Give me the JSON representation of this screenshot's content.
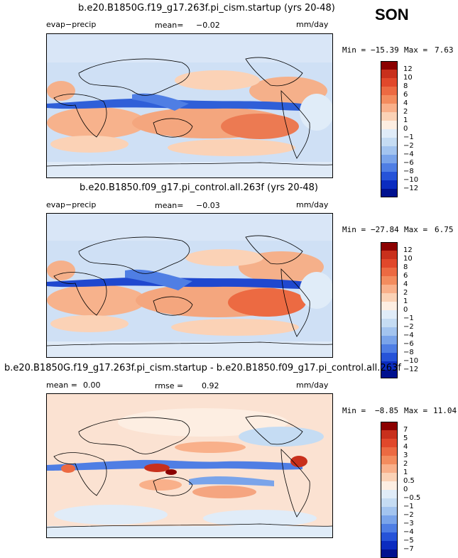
{
  "season": "SON",
  "panels": [
    {
      "title": "b.e20.B1850G.f19_g17.263f.pi_cism.startup (yrs 20-48)",
      "left_label": "evap−precip",
      "stat_label": "mean=",
      "stat_value": "−0.02",
      "units": "mm/day",
      "min_label": "Min =",
      "min_value": "−15.39",
      "max_label": "Max =",
      "max_value": "7.63",
      "colorbar": {
        "colors": [
          "#8b0000",
          "#c8301c",
          "#e1482b",
          "#ec6a42",
          "#f38c5e",
          "#f9b08a",
          "#fbd2b6",
          "#fdeee2",
          "#e0ecf8",
          "#c5dcf3",
          "#a3c4ef",
          "#7aa4ea",
          "#4f7ee4",
          "#2653d8",
          "#0b2cc0",
          "#00118f"
        ],
        "ticks": [
          "12",
          "10",
          "8",
          "6",
          "4",
          "2",
          "1",
          "0",
          "−1",
          "−2",
          "−4",
          "−6",
          "−8",
          "−10",
          "−12"
        ]
      }
    },
    {
      "title": "b.e20.B1850.f09_g17.pi_control.all.263f (yrs 20-48)",
      "left_label": "evap−precip",
      "stat_label": "mean=",
      "stat_value": "−0.03",
      "units": "mm/day",
      "min_label": "Min =",
      "min_value": "−27.84",
      "max_label": "Max =",
      "max_value": "6.75",
      "colorbar": {
        "colors": [
          "#8b0000",
          "#c8301c",
          "#e1482b",
          "#ec6a42",
          "#f38c5e",
          "#f9b08a",
          "#fbd2b6",
          "#fdeee2",
          "#e0ecf8",
          "#c5dcf3",
          "#a3c4ef",
          "#7aa4ea",
          "#4f7ee4",
          "#2653d8",
          "#0b2cc0",
          "#00118f"
        ],
        "ticks": [
          "12",
          "10",
          "8",
          "6",
          "4",
          "2",
          "1",
          "0",
          "−1",
          "−2",
          "−4",
          "−6",
          "−8",
          "−10",
          "−12"
        ]
      }
    },
    {
      "title": "b.e20.B1850G.f19_g17.263f.pi_cism.startup - b.e20.B1850.f09_g17.pi_control.all.263f",
      "left_label": "mean =",
      "left_value": "0.00",
      "stat_label": "rmse =",
      "stat_value": "0.92",
      "units": "mm/day",
      "min_label": "Min =",
      "min_value": "−8.85",
      "max_label": "Max =",
      "max_value": "11.04",
      "colorbar": {
        "colors": [
          "#8b0000",
          "#c8301c",
          "#e1482b",
          "#ec6a42",
          "#f38c5e",
          "#f9b08a",
          "#fbd2b6",
          "#fdeee2",
          "#e0ecf8",
          "#c5dcf3",
          "#a3c4ef",
          "#7aa4ea",
          "#4f7ee4",
          "#2653d8",
          "#0b2cc0",
          "#00118f"
        ],
        "ticks": [
          "7",
          "5",
          "4",
          "3",
          "2",
          "1",
          "0.5",
          "0",
          "−0.5",
          "−1",
          "−2",
          "−3",
          "−4",
          "−5",
          "−7"
        ]
      }
    }
  ]
}
